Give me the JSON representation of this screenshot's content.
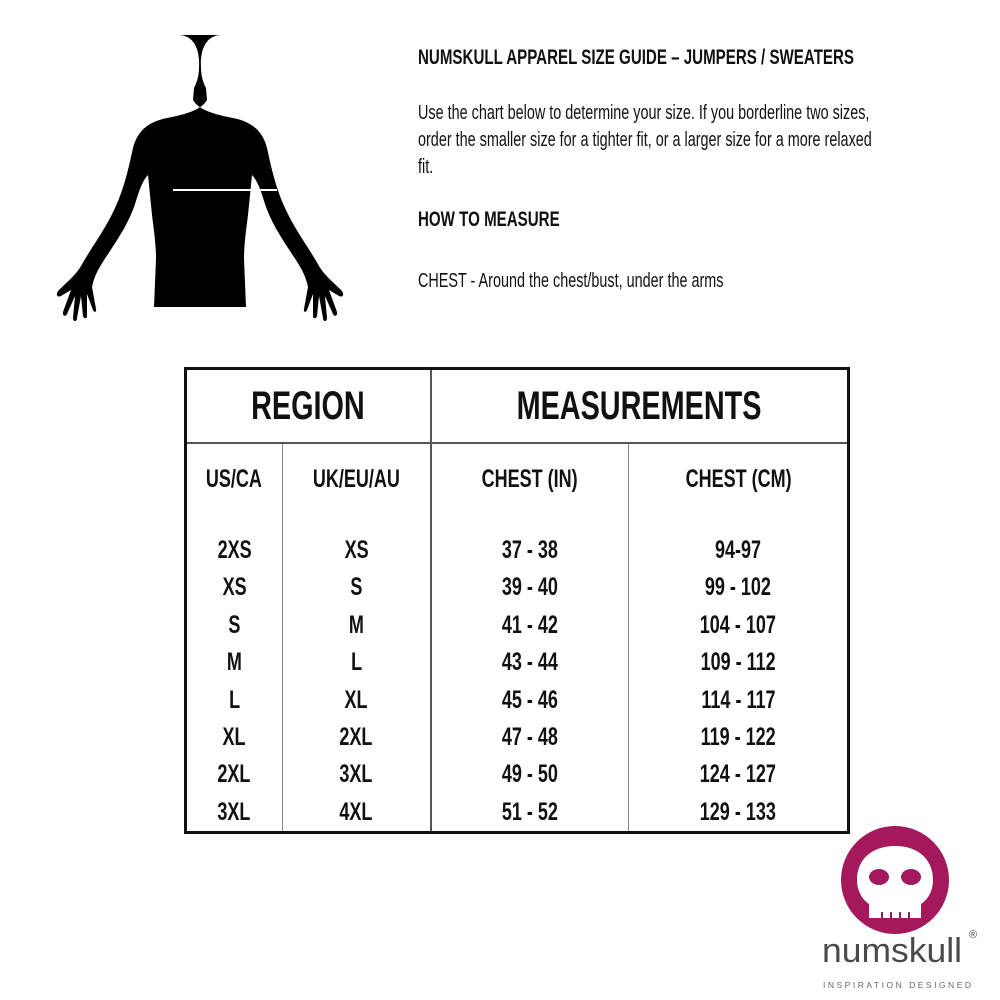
{
  "title": "NUMSKULL APPAREL SIZE GUIDE – JUMPERS / SWEATERS",
  "intro": "Use the chart below to determine your size.  If you borderline two sizes, order the smaller size for a tighter fit, or a larger size for a more relaxed fit.",
  "how_to_measure": "HOW TO MEASURE",
  "chest_instruction": "CHEST  - Around the chest/bust, under the arms",
  "table": {
    "group_headers": [
      "REGION",
      "MEASUREMENTS"
    ],
    "columns": [
      "US/CA",
      "UK/EU/AU",
      "CHEST (IN)",
      "CHEST (CM)"
    ],
    "rows": [
      [
        "2XS",
        "XS",
        "37 - 38",
        "94-97"
      ],
      [
        "XS",
        "S",
        "39 - 40",
        "99 - 102"
      ],
      [
        "S",
        "M",
        "41 - 42",
        "104 - 107"
      ],
      [
        "M",
        "L",
        "43 - 44",
        "109 - 112"
      ],
      [
        "L",
        "XL",
        "45 - 46",
        "114 - 117"
      ],
      [
        "XL",
        "2XL",
        "47 - 48",
        "119 - 122"
      ],
      [
        "2XL",
        "3XL",
        "49 - 50",
        "124 - 127"
      ],
      [
        "3XL",
        "4XL",
        "51 - 52",
        "129 - 133"
      ]
    ]
  },
  "logo": {
    "name": "numskull",
    "tagline": "INSPIRATION DESIGNED",
    "brand_color": "#a3195b",
    "text_color": "#4a4a4a"
  }
}
